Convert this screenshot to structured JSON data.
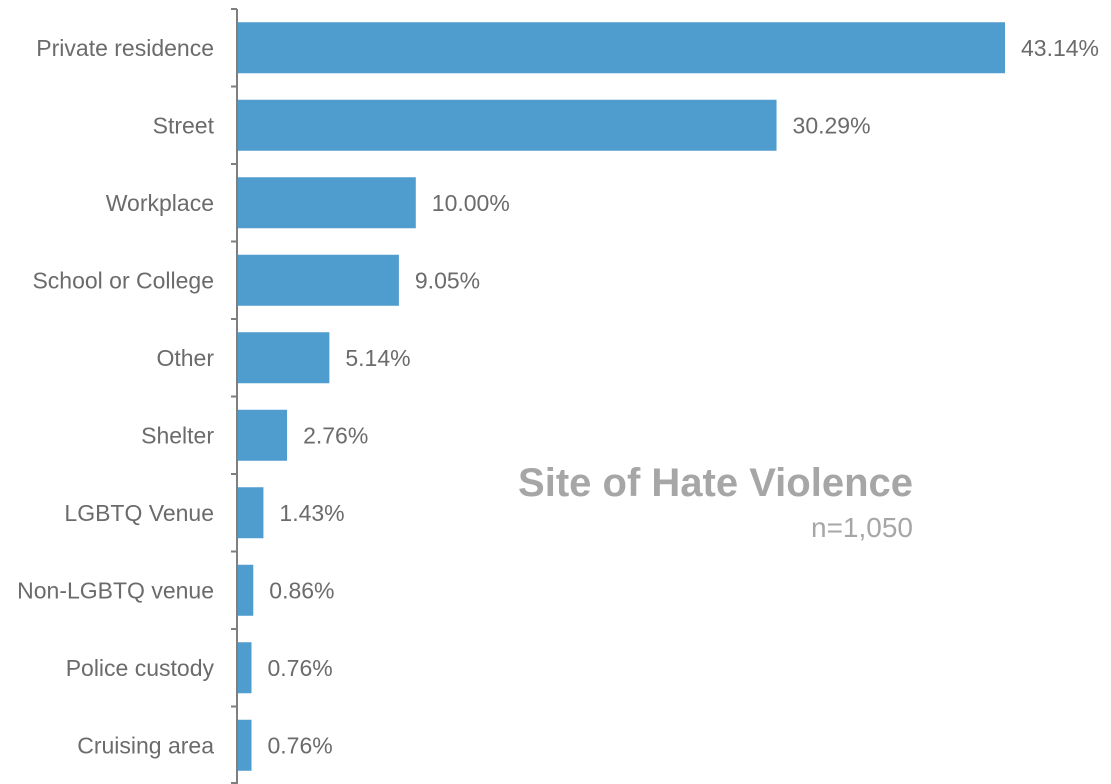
{
  "chart_data": {
    "type": "bar",
    "orientation": "horizontal",
    "title": "Site of Hate Violence",
    "subtitle": "n=1,050",
    "xlabel": "",
    "ylabel": "",
    "xlim": [
      0,
      45
    ],
    "grid": false,
    "bar_color": "#4f9ccf",
    "categories": [
      "Private residence",
      "Street",
      "Workplace",
      "School or College",
      "Other",
      "Shelter",
      "LGBTQ Venue",
      "Non-LGBTQ venue",
      "Police custody",
      "Cruising area"
    ],
    "values": [
      43.14,
      30.29,
      10.0,
      9.05,
      5.14,
      2.76,
      1.43,
      0.86,
      0.76,
      0.76
    ],
    "value_labels": [
      "43.14%",
      "30.29%",
      "10.00%",
      "9.05%",
      "5.14%",
      "2.76%",
      "1.43%",
      "0.86%",
      "0.76%",
      "0.76%"
    ]
  }
}
